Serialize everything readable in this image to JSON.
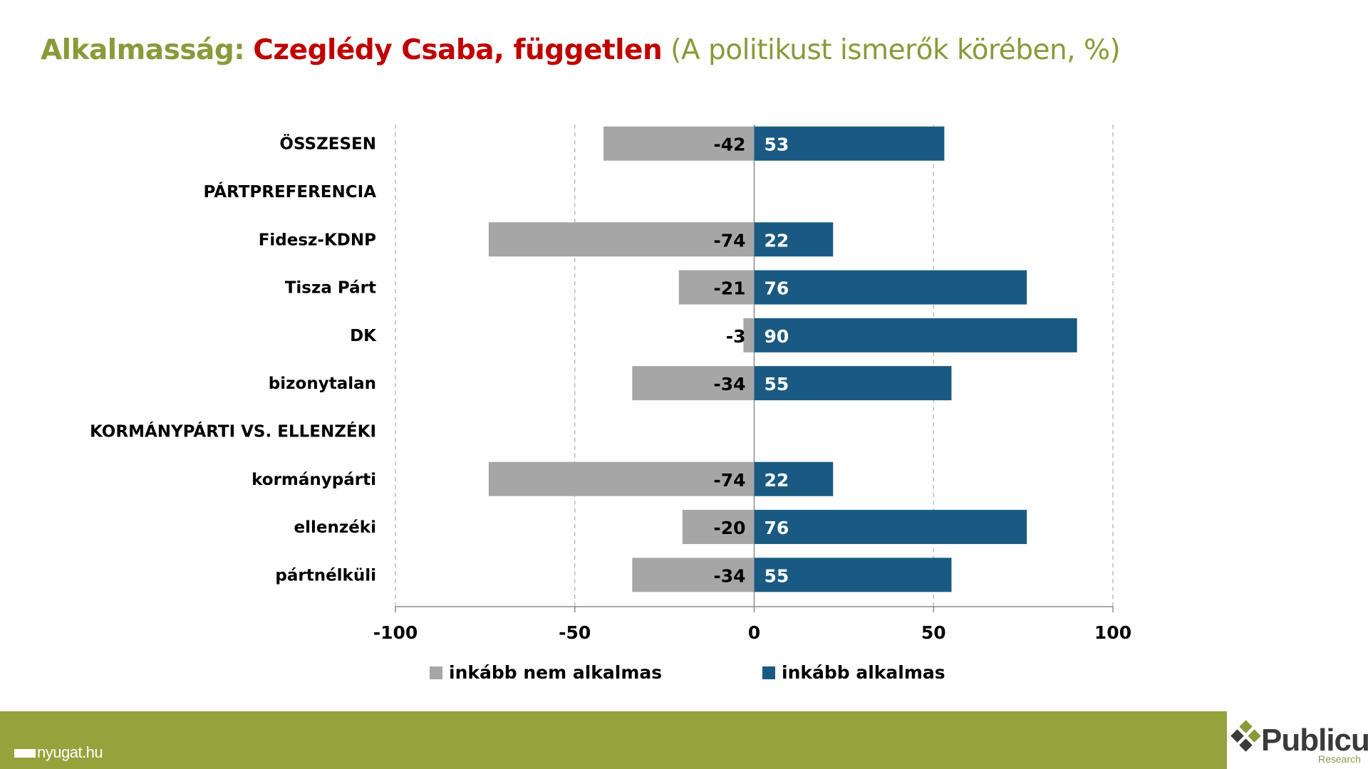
{
  "title": {
    "part1": "Alkalmasság:",
    "part2": "Czeglédy Csaba, független",
    "part3": "(A politikust ismerők körében, %)"
  },
  "colors": {
    "olive": "#8a9a3a",
    "red": "#c00000",
    "negative_bar": "#a6a6a6",
    "positive_bar": "#1a5a82",
    "footer": "#94a33c",
    "logo_dark": "#3a3a3a"
  },
  "chart_data": {
    "type": "bar",
    "orientation": "horizontal",
    "stacked": "diverging",
    "categories": [
      "ÖSSZESEN",
      "PÁRTPREFERENCIA",
      "Fidesz-KDNP",
      "Tisza Párt",
      "DK",
      "bizonytalan",
      "KORMÁNYPÁRTI VS. ELLENZÉKI",
      "kormánypárti",
      "ellenzéki",
      "pártnélküli"
    ],
    "series": [
      {
        "name": "inkább nem alkalmas",
        "color": "#a6a6a6",
        "values": [
          -42,
          null,
          -74,
          -21,
          -3,
          -34,
          null,
          -74,
          -20,
          -34
        ]
      },
      {
        "name": "inkább alkalmas",
        "color": "#1a5a82",
        "values": [
          53,
          null,
          22,
          76,
          90,
          55,
          null,
          22,
          76,
          55
        ]
      }
    ],
    "xlim": [
      -100,
      100
    ],
    "xticks": [
      -100,
      -50,
      0,
      50,
      100
    ],
    "xtick_labels": [
      "-100",
      "-50",
      "0",
      "50",
      "100"
    ],
    "grid": "vertical dashed",
    "legend": "bottom"
  },
  "footer": {
    "source": "nyugat.hu",
    "logo_name": "Publicus",
    "logo_sub": "Research"
  }
}
